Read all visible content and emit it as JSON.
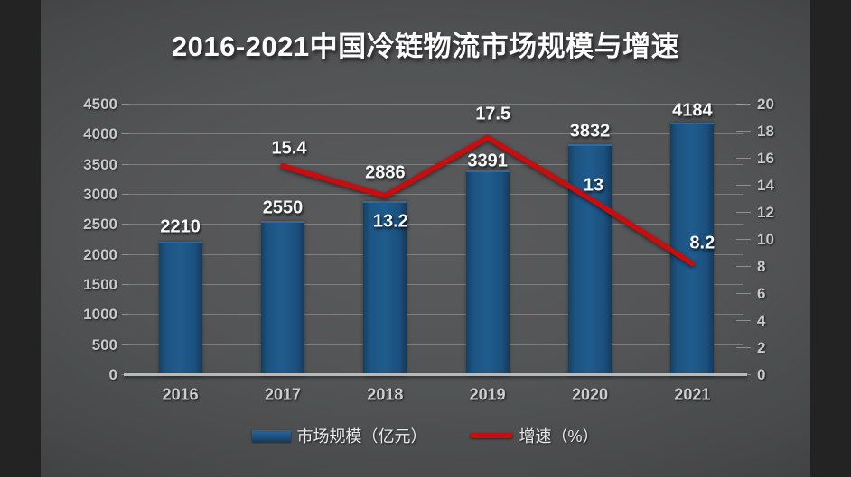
{
  "title": "2016-2021中国冷链物流市场规模与增速",
  "colors": {
    "bar": "#1d5585",
    "bar_edge": "#2f6ba1",
    "line": "#c50e10",
    "axis_text": "#c9cacc",
    "data_label": "#f7f8f9",
    "background_center": "#5a5b5d",
    "background_edge": "#2b2b2d"
  },
  "chart_data": {
    "type": "bar",
    "subtype": "bar-line-combo",
    "title": "2016-2021中国冷链物流市场规模与增速",
    "categories": [
      "2016",
      "2017",
      "2018",
      "2019",
      "2020",
      "2021"
    ],
    "series": [
      {
        "name": "市场规模（亿元）",
        "type": "bar",
        "axis": "left",
        "values": [
          2210,
          2550,
          2886,
          3391,
          3832,
          4184
        ],
        "color": "#1d5585"
      },
      {
        "name": "增速（%）",
        "type": "line",
        "axis": "right",
        "values": [
          null,
          15.4,
          13.2,
          17.5,
          13,
          8.2
        ],
        "color": "#c50e10"
      }
    ],
    "left_axis": {
      "min": 0,
      "max": 4500,
      "step": 500,
      "ticks": [
        0,
        500,
        1000,
        1500,
        2000,
        2500,
        3000,
        3500,
        4000,
        4500
      ]
    },
    "right_axis": {
      "min": 0,
      "max": 20,
      "step": 2,
      "ticks": [
        0,
        2,
        4,
        6,
        8,
        10,
        12,
        14,
        16,
        18,
        20
      ]
    },
    "grid": true,
    "legend_position": "bottom",
    "xlabel": "",
    "ylabel": ""
  },
  "legend": {
    "market_size_label": "市场规模（亿元）",
    "growth_label": "增速（%）"
  }
}
